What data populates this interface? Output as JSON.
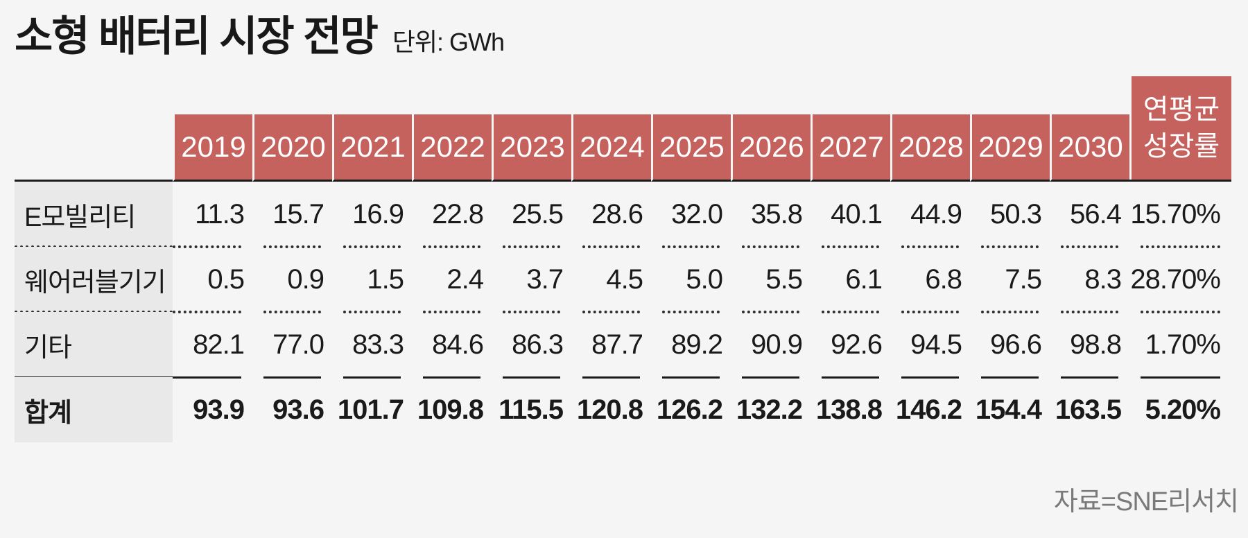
{
  "title": {
    "text": "소형 배터리 시장 전망",
    "unit": "단위: GWh"
  },
  "colors": {
    "page_bg": "#f5f5f5",
    "accent_red": "#c5625e",
    "label_column_bg": "#e9e9e9",
    "rule_line": "#1a1a1a",
    "source_text": "#7a7a7a"
  },
  "table": {
    "header": {
      "years": [
        "2019",
        "2020",
        "2021",
        "2022",
        "2023",
        "2024",
        "2025",
        "2026",
        "2027",
        "2028",
        "2029",
        "2030"
      ],
      "cagr_line1": "연평균",
      "cagr_line2": "성장률"
    },
    "rows": [
      {
        "label": "E모빌리티",
        "values": [
          "11.3",
          "15.7",
          "16.9",
          "22.8",
          "25.5",
          "28.6",
          "32.0",
          "35.8",
          "40.1",
          "44.9",
          "50.3",
          "56.4"
        ],
        "cagr": "15.70%"
      },
      {
        "label": "웨어러블기기",
        "values": [
          "0.5",
          "0.9",
          "1.5",
          "2.4",
          "3.7",
          "4.5",
          "5.0",
          "5.5",
          "6.1",
          "6.8",
          "7.5",
          "8.3"
        ],
        "cagr": "28.70%"
      },
      {
        "label": "기타",
        "values": [
          "82.1",
          "77.0",
          "83.3",
          "84.6",
          "86.3",
          "87.7",
          "89.2",
          "90.9",
          "92.6",
          "94.5",
          "96.6",
          "98.8"
        ],
        "cagr": "1.70%"
      }
    ],
    "total": {
      "label": "합계",
      "values": [
        "93.9",
        "93.6",
        "101.7",
        "109.8",
        "115.5",
        "120.8",
        "126.2",
        "132.2",
        "138.8",
        "146.2",
        "154.4",
        "163.5"
      ],
      "cagr": "5.20%"
    }
  },
  "source": {
    "text": "자료=SNE리서치"
  },
  "chart_data": {
    "type": "table",
    "title": "소형 배터리 시장 전망",
    "unit": "GWh",
    "columns": [
      "2019",
      "2020",
      "2021",
      "2022",
      "2023",
      "2024",
      "2025",
      "2026",
      "2027",
      "2028",
      "2029",
      "2030",
      "연평균 성장률"
    ],
    "series": [
      {
        "name": "E모빌리티",
        "values": [
          11.3,
          15.7,
          16.9,
          22.8,
          25.5,
          28.6,
          32.0,
          35.8,
          40.1,
          44.9,
          50.3,
          56.4
        ],
        "cagr_pct": 15.7
      },
      {
        "name": "웨어러블기기",
        "values": [
          0.5,
          0.9,
          1.5,
          2.4,
          3.7,
          4.5,
          5.0,
          5.5,
          6.1,
          6.8,
          7.5,
          8.3
        ],
        "cagr_pct": 28.7
      },
      {
        "name": "기타",
        "values": [
          82.1,
          77.0,
          83.3,
          84.6,
          86.3,
          87.7,
          89.2,
          90.9,
          92.6,
          94.5,
          96.6,
          98.8
        ],
        "cagr_pct": 1.7
      },
      {
        "name": "합계",
        "values": [
          93.9,
          93.6,
          101.7,
          109.8,
          115.5,
          120.8,
          126.2,
          132.2,
          138.8,
          146.2,
          154.4,
          163.5
        ],
        "cagr_pct": 5.2
      }
    ],
    "source": "자료=SNE리서치"
  }
}
